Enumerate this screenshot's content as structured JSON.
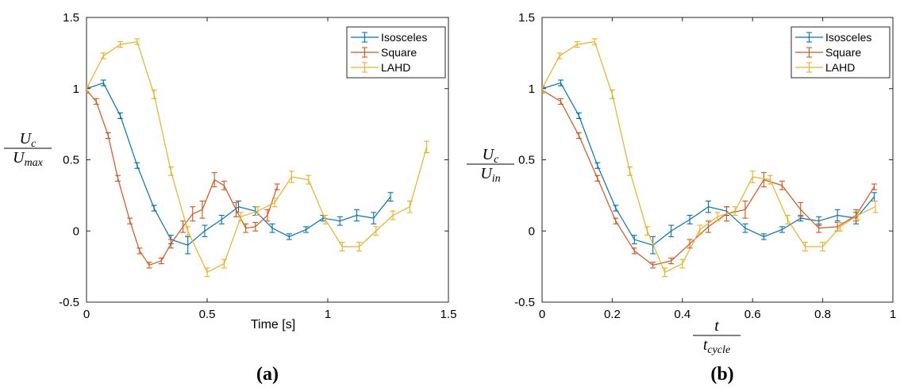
{
  "chart_data": [
    {
      "type": "line",
      "panel_label": "(a)",
      "xlabel": "Time [s]",
      "ylabel": {
        "numerator": "U",
        "numerator_sub": "c",
        "denominator": "U",
        "denominator_sub": "max"
      },
      "xlim": [
        0,
        1.5
      ],
      "ylim": [
        -0.5,
        1.5
      ],
      "xticks": [
        "0",
        "0.5",
        "1",
        "1.5"
      ],
      "yticks": [
        "-0.5",
        "0",
        "0.5",
        "1",
        "1.5"
      ],
      "legend_position": "top-right",
      "series": [
        {
          "name": "Isosceles",
          "color": "#0072BD",
          "x": [
            0,
            0.07,
            0.14,
            0.21,
            0.28,
            0.35,
            0.42,
            0.49,
            0.56,
            0.63,
            0.7,
            0.77,
            0.84,
            0.91,
            0.98,
            1.05,
            1.12,
            1.19,
            1.26
          ],
          "y": [
            1.0,
            1.04,
            0.81,
            0.46,
            0.16,
            -0.06,
            -0.1,
            0.0,
            0.08,
            0.17,
            0.14,
            0.02,
            -0.04,
            0.01,
            0.09,
            0.07,
            0.11,
            0.09,
            0.24
          ],
          "err": [
            0.02,
            0.02,
            0.02,
            0.02,
            0.02,
            0.03,
            0.06,
            0.04,
            0.03,
            0.04,
            0.03,
            0.03,
            0.02,
            0.02,
            0.02,
            0.03,
            0.04,
            0.04,
            0.03
          ]
        },
        {
          "name": "Square",
          "color": "#D95319",
          "x": [
            0,
            0.04,
            0.09,
            0.13,
            0.18,
            0.22,
            0.26,
            0.31,
            0.35,
            0.4,
            0.44,
            0.48,
            0.53,
            0.57,
            0.62,
            0.66,
            0.7,
            0.75,
            0.79
          ],
          "y": [
            0.99,
            0.91,
            0.67,
            0.37,
            0.07,
            -0.14,
            -0.24,
            -0.21,
            -0.09,
            0.03,
            0.12,
            0.15,
            0.36,
            0.32,
            0.15,
            0.02,
            0.03,
            0.11,
            0.31
          ],
          "err": [
            0.02,
            0.02,
            0.02,
            0.02,
            0.02,
            0.02,
            0.02,
            0.02,
            0.03,
            0.04,
            0.05,
            0.06,
            0.05,
            0.03,
            0.05,
            0.03,
            0.03,
            0.04,
            0.02
          ]
        },
        {
          "name": "LAHD",
          "color": "#EDB120",
          "x": [
            0,
            0.07,
            0.14,
            0.21,
            0.28,
            0.35,
            0.42,
            0.5,
            0.57,
            0.64,
            0.71,
            0.78,
            0.85,
            0.92,
            0.99,
            1.06,
            1.13,
            1.2,
            1.27,
            1.34,
            1.41
          ],
          "y": [
            1.0,
            1.23,
            1.31,
            1.33,
            0.96,
            0.42,
            0.0,
            -0.29,
            -0.23,
            0.1,
            0.14,
            0.2,
            0.38,
            0.36,
            0.08,
            -0.11,
            -0.11,
            0.0,
            0.11,
            0.17,
            0.59
          ],
          "err": [
            0.02,
            0.02,
            0.02,
            0.02,
            0.03,
            0.03,
            0.03,
            0.03,
            0.03,
            0.03,
            0.03,
            0.03,
            0.04,
            0.03,
            0.03,
            0.03,
            0.03,
            0.03,
            0.03,
            0.04,
            0.04
          ]
        }
      ]
    },
    {
      "type": "line",
      "panel_label": "(b)",
      "xlabel": {
        "numerator": "t",
        "denominator": "t",
        "denominator_sub": "cycle"
      },
      "ylabel": {
        "numerator": "U",
        "numerator_sub": "c",
        "denominator": "U",
        "denominator_sub": "in"
      },
      "xlim": [
        0,
        1
      ],
      "ylim": [
        -0.5,
        1.5
      ],
      "xticks": [
        "0",
        "0.2",
        "0.4",
        "0.6",
        "0.8",
        "1"
      ],
      "yticks": [
        "-0.5",
        "0",
        "0.5",
        "1",
        "1.5"
      ],
      "legend_position": "top-right",
      "series": [
        {
          "name": "Isosceles",
          "color": "#0072BD",
          "x": [
            0,
            0.053,
            0.105,
            0.158,
            0.21,
            0.263,
            0.316,
            0.368,
            0.421,
            0.474,
            0.526,
            0.579,
            0.632,
            0.684,
            0.737,
            0.789,
            0.842,
            0.895,
            0.947
          ],
          "y": [
            1.0,
            1.04,
            0.81,
            0.46,
            0.16,
            -0.06,
            -0.1,
            0.0,
            0.08,
            0.17,
            0.14,
            0.02,
            -0.04,
            0.01,
            0.09,
            0.07,
            0.11,
            0.09,
            0.24
          ],
          "err": [
            0.02,
            0.02,
            0.02,
            0.02,
            0.02,
            0.03,
            0.06,
            0.04,
            0.03,
            0.04,
            0.03,
            0.03,
            0.02,
            0.02,
            0.02,
            0.03,
            0.04,
            0.04,
            0.03
          ]
        },
        {
          "name": "Square",
          "color": "#D95319",
          "x": [
            0,
            0.053,
            0.105,
            0.158,
            0.21,
            0.263,
            0.316,
            0.368,
            0.421,
            0.474,
            0.526,
            0.579,
            0.632,
            0.684,
            0.737,
            0.789,
            0.842,
            0.895,
            0.947
          ],
          "y": [
            0.99,
            0.91,
            0.67,
            0.37,
            0.07,
            -0.14,
            -0.24,
            -0.21,
            -0.09,
            0.03,
            0.12,
            0.15,
            0.36,
            0.32,
            0.15,
            0.02,
            0.03,
            0.11,
            0.31
          ],
          "err": [
            0.02,
            0.02,
            0.02,
            0.02,
            0.02,
            0.02,
            0.02,
            0.02,
            0.03,
            0.04,
            0.05,
            0.06,
            0.05,
            0.03,
            0.05,
            0.03,
            0.03,
            0.04,
            0.02
          ]
        },
        {
          "name": "LAHD",
          "color": "#EDB120",
          "x": [
            0,
            0.05,
            0.1,
            0.15,
            0.2,
            0.25,
            0.3,
            0.35,
            0.4,
            0.45,
            0.5,
            0.55,
            0.6,
            0.65,
            0.7,
            0.75,
            0.8,
            0.85,
            0.9,
            0.95
          ],
          "y": [
            1.0,
            1.23,
            1.31,
            1.33,
            0.96,
            0.42,
            0.0,
            -0.29,
            -0.23,
            0.01,
            0.1,
            0.14,
            0.38,
            0.36,
            0.08,
            -0.11,
            -0.11,
            0.03,
            0.11,
            0.17
          ],
          "err": [
            0.02,
            0.02,
            0.02,
            0.02,
            0.03,
            0.03,
            0.03,
            0.03,
            0.03,
            0.03,
            0.03,
            0.03,
            0.04,
            0.03,
            0.03,
            0.03,
            0.03,
            0.03,
            0.03,
            0.04
          ]
        }
      ]
    }
  ]
}
